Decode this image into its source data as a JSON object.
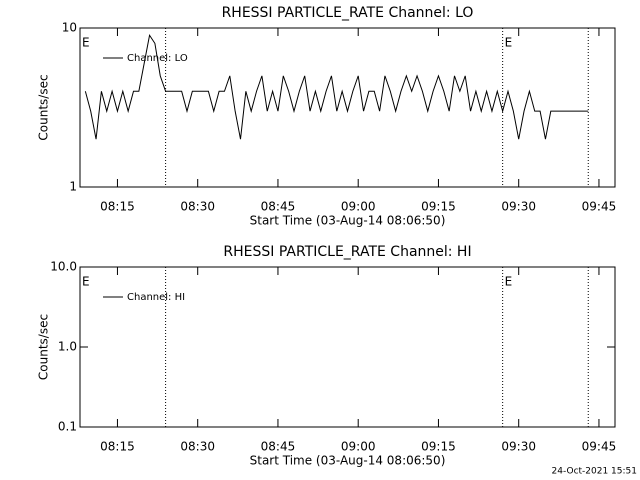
{
  "chart_data": [
    {
      "type": "line",
      "title": "RHESSI PARTICLE_RATE Channel: LO",
      "ylabel": "Counts/sec",
      "xlabel": "Start Time (03-Aug-14 08:06:50)",
      "xlim": [
        "08:08",
        "09:48"
      ],
      "xticks": [
        "08:15",
        "08:30",
        "08:45",
        "09:00",
        "09:15",
        "09:30",
        "09:45"
      ],
      "ylim": [
        1,
        10
      ],
      "yticks": [
        1,
        10
      ],
      "log_y": true,
      "legend": "upper left",
      "x": [
        "08:09",
        "08:10",
        "08:11",
        "08:12",
        "08:13",
        "08:14",
        "08:15",
        "08:16",
        "08:17",
        "08:18",
        "08:19",
        "08:20",
        "08:21",
        "08:22",
        "08:23",
        "08:24",
        "08:25",
        "08:26",
        "08:27",
        "08:28",
        "08:29",
        "08:30",
        "08:31",
        "08:32",
        "08:33",
        "08:34",
        "08:35",
        "08:36",
        "08:37",
        "08:38",
        "08:39",
        "08:40",
        "08:41",
        "08:42",
        "08:43",
        "08:44",
        "08:45",
        "08:46",
        "08:47",
        "08:48",
        "08:49",
        "08:50",
        "08:51",
        "08:52",
        "08:53",
        "08:54",
        "08:55",
        "08:56",
        "08:57",
        "08:58",
        "08:59",
        "09:00",
        "09:01",
        "09:02",
        "09:03",
        "09:04",
        "09:05",
        "09:06",
        "09:07",
        "09:08",
        "09:09",
        "09:10",
        "09:11",
        "09:12",
        "09:13",
        "09:14",
        "09:15",
        "09:16",
        "09:17",
        "09:18",
        "09:19",
        "09:20",
        "09:21",
        "09:22",
        "09:23",
        "09:24",
        "09:25",
        "09:26",
        "09:27",
        "09:28",
        "09:29",
        "09:30",
        "09:31",
        "09:32",
        "09:33",
        "09:34",
        "09:35",
        "09:36",
        "09:37",
        "09:38",
        "09:39",
        "09:40",
        "09:41",
        "09:42",
        "09:43"
      ],
      "series": [
        {
          "name": "Channel: LO",
          "color": "#000000",
          "values": [
            4,
            3,
            2,
            4,
            3,
            4,
            3,
            4,
            3,
            4,
            4,
            6,
            9,
            8,
            5,
            4,
            4,
            4,
            4,
            3,
            4,
            4,
            4,
            4,
            3,
            4,
            4,
            5,
            3,
            2,
            4,
            3,
            4,
            5,
            3,
            4,
            3,
            5,
            4,
            3,
            4,
            5,
            3,
            4,
            3,
            4,
            5,
            3,
            4,
            3,
            4,
            5,
            3,
            4,
            4,
            3,
            5,
            4,
            3,
            4,
            5,
            4,
            5,
            4,
            3,
            4,
            5,
            4,
            3,
            5,
            4,
            5,
            3,
            4,
            3,
            4,
            3,
            4,
            3,
            4,
            3,
            2,
            3,
            4,
            3,
            3,
            2,
            3,
            3,
            3,
            3,
            3,
            3,
            3,
            3
          ]
        }
      ],
      "vlines": [
        "08:24",
        "09:27",
        "09:43"
      ],
      "annotations": [
        {
          "text": "E",
          "x": "08:08"
        },
        {
          "text": "E",
          "x": "09:27"
        }
      ]
    },
    {
      "type": "line",
      "title": "RHESSI PARTICLE_RATE Channel: HI",
      "ylabel": "Counts/sec",
      "xlabel": "Start Time (03-Aug-14 08:06:50)",
      "xlim": [
        "08:08",
        "09:48"
      ],
      "xticks": [
        "08:15",
        "08:30",
        "08:45",
        "09:00",
        "09:15",
        "09:30",
        "09:45"
      ],
      "ylim": [
        0.1,
        10
      ],
      "yticks": [
        0.1,
        {
          "value": 1,
          "label": "1.0"
        },
        {
          "value": 10,
          "label": "10.0"
        }
      ],
      "log_y": true,
      "legend": "upper left",
      "x": [],
      "series": [
        {
          "name": "Channel: HI",
          "color": "#000000",
          "values": []
        }
      ],
      "vlines": [
        "08:24",
        "09:27",
        "09:43"
      ],
      "annotations": [
        {
          "text": "E",
          "x": "08:08"
        },
        {
          "text": "E",
          "x": "09:27"
        }
      ]
    }
  ],
  "footer": "24-Oct-2021 15:51"
}
